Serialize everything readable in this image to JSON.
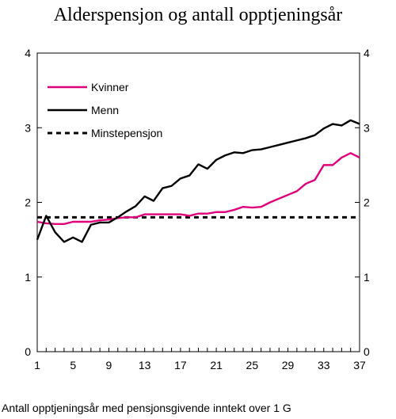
{
  "chart_data": {
    "type": "line",
    "title": "Alderspensjon og antall opptjeningsår",
    "xlabel": "Antall opptjeningsår med pensjonsgivende inntekt over 1 G",
    "ylabel": "",
    "xlim": [
      1,
      37
    ],
    "ylim": [
      0,
      4
    ],
    "x_ticks": [
      "1",
      "5",
      "9",
      "13",
      "17",
      "21",
      "25",
      "29",
      "33",
      "37"
    ],
    "y_ticks_left": [
      "0",
      "1",
      "2",
      "3",
      "4"
    ],
    "y_ticks_right": [
      "0",
      "1",
      "2",
      "3",
      "4"
    ],
    "grid": false,
    "legend_position": "top-left",
    "x": [
      1,
      2,
      3,
      4,
      5,
      6,
      7,
      8,
      9,
      10,
      11,
      12,
      13,
      14,
      15,
      16,
      17,
      18,
      19,
      20,
      21,
      22,
      23,
      24,
      25,
      26,
      27,
      28,
      29,
      30,
      31,
      32,
      33,
      34,
      35,
      36,
      37
    ],
    "series": [
      {
        "name": "Kvinner",
        "color": "#e0007a",
        "dash": "solid",
        "values": [
          1.74,
          1.72,
          1.71,
          1.71,
          1.74,
          1.74,
          1.74,
          1.76,
          1.77,
          1.79,
          1.8,
          1.8,
          1.84,
          1.84,
          1.84,
          1.84,
          1.84,
          1.82,
          1.85,
          1.85,
          1.87,
          1.87,
          1.9,
          1.94,
          1.93,
          1.94,
          2.0,
          2.05,
          2.1,
          2.15,
          2.25,
          2.3,
          2.5,
          2.5,
          2.6,
          2.66,
          2.6
        ]
      },
      {
        "name": "Menn",
        "color": "#000000",
        "dash": "solid",
        "values": [
          1.5,
          1.82,
          1.6,
          1.47,
          1.53,
          1.47,
          1.7,
          1.73,
          1.73,
          1.8,
          1.88,
          1.95,
          2.08,
          2.02,
          2.19,
          2.22,
          2.32,
          2.36,
          2.51,
          2.45,
          2.57,
          2.63,
          2.67,
          2.66,
          2.7,
          2.71,
          2.74,
          2.77,
          2.8,
          2.83,
          2.86,
          2.9,
          2.99,
          3.05,
          3.03,
          3.1,
          3.05
        ]
      },
      {
        "name": "Minstepensjon",
        "color": "#000000",
        "dash": "dashed",
        "values": [
          1.8,
          1.8,
          1.8,
          1.8,
          1.8,
          1.8,
          1.8,
          1.8,
          1.8,
          1.8,
          1.8,
          1.8,
          1.8,
          1.8,
          1.8,
          1.8,
          1.8,
          1.8,
          1.8,
          1.8,
          1.8,
          1.8,
          1.8,
          1.8,
          1.8,
          1.8,
          1.8,
          1.8,
          1.8,
          1.8,
          1.8,
          1.8,
          1.8,
          1.8,
          1.8,
          1.8,
          1.8
        ]
      }
    ]
  }
}
